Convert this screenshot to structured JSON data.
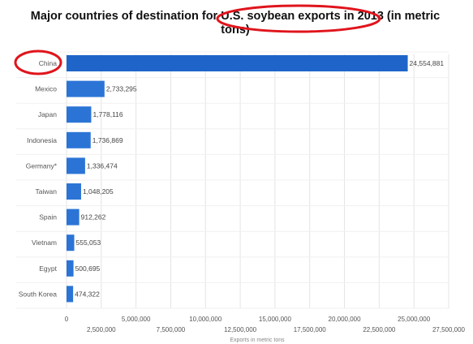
{
  "chart_data": {
    "type": "bar",
    "orientation": "horizontal",
    "title": "Major countries of destination for U.S. soybean exports in 2013 (in metric tons)",
    "title_line1": "Major countries of destination for U.S. soybean exports in 2013 (in metric",
    "title_line2": "tons)",
    "xlabel": "Exports in metric tons",
    "ylabel": "",
    "xlim": [
      0,
      27500000
    ],
    "grid": true,
    "categories": [
      "China",
      "Mexico",
      "Japan",
      "Indonesia",
      "Germany*",
      "Taiwan",
      "Spain",
      "Vietnam",
      "Egypt",
      "South Korea"
    ],
    "values": [
      24554881,
      2733295,
      1778116,
      1736869,
      1336474,
      1048205,
      912262,
      555053,
      500695,
      474322
    ],
    "value_labels": [
      "24,554,881",
      "2,733,295",
      "1,778,116",
      "1,736,869",
      "1,336,474",
      "1,048,205",
      "912,262",
      "555,053",
      "500,695",
      "474,322"
    ],
    "ticks_upper": [
      {
        "value": 0,
        "label": "0"
      },
      {
        "value": 5000000,
        "label": "5,000,000"
      },
      {
        "value": 10000000,
        "label": "10,000,000"
      },
      {
        "value": 15000000,
        "label": "15,000,000"
      },
      {
        "value": 20000000,
        "label": "20,000,000"
      },
      {
        "value": 25000000,
        "label": "25,000,000"
      }
    ],
    "ticks_lower": [
      {
        "value": 2500000,
        "label": "2,500,000"
      },
      {
        "value": 7500000,
        "label": "7,500,000"
      },
      {
        "value": 12500000,
        "label": "12,500,000"
      },
      {
        "value": 17500000,
        "label": "17,500,000"
      },
      {
        "value": 22500000,
        "label": "22,500,000"
      },
      {
        "value": 27500000,
        "label": "27,500,000"
      }
    ],
    "colors": {
      "bar": "#2b74d6",
      "highlight_bar": "#1f65c9",
      "annotation": "#e0141c",
      "grid": "#e4e4e4"
    }
  }
}
